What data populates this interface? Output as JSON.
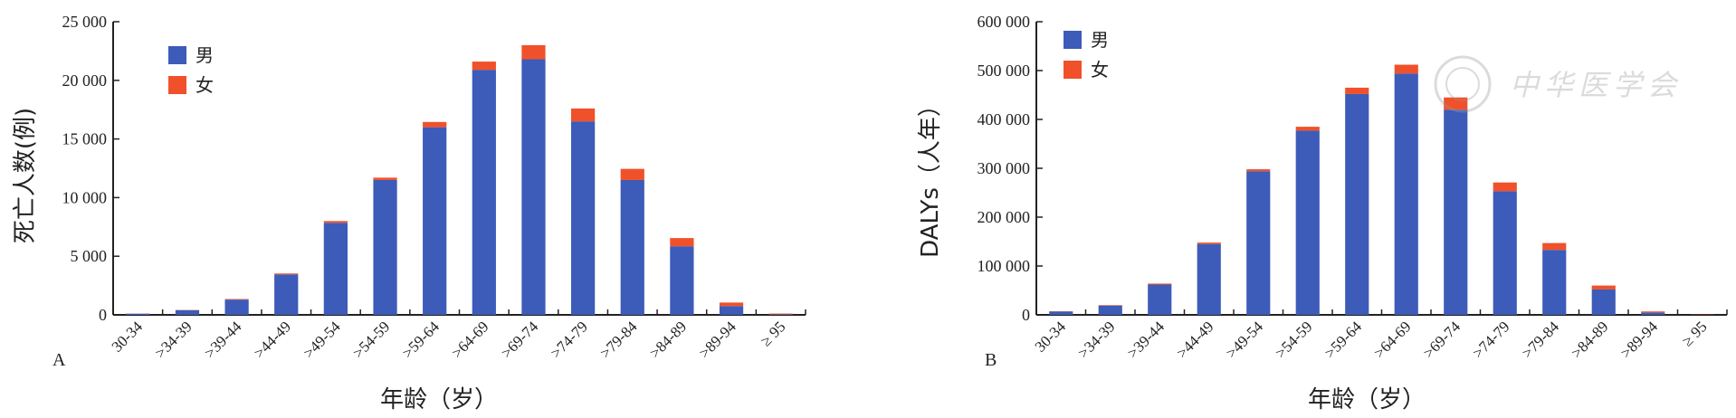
{
  "colors": {
    "male": "#3d5bb8",
    "female": "#f0512a",
    "axis": "#222222"
  },
  "chart_data": [
    {
      "type": "bar",
      "stacked": true,
      "panel_label": "A",
      "ylabel": "死亡人数(例)",
      "xlabel": "年龄（岁）",
      "ylim": [
        0,
        25000
      ],
      "yticks": [
        0,
        5000,
        10000,
        15000,
        20000,
        25000
      ],
      "ytick_labels": [
        "0",
        "5 000",
        "10 000",
        "15 000",
        "20 000",
        "25 000"
      ],
      "categories": [
        "30-34",
        ">34-39",
        ">39-44",
        ">44-49",
        ">49-54",
        ">54-59",
        ">59-64",
        ">64-69",
        ">69-74",
        ">74-79",
        ">79-84",
        ">84-89",
        ">89-94",
        "≥ 95"
      ],
      "legend_position": "top-left",
      "series": [
        {
          "name": "男",
          "values": [
            100,
            400,
            1300,
            3450,
            7850,
            11500,
            16000,
            20900,
            21800,
            16500,
            11500,
            5850,
            750,
            50
          ]
        },
        {
          "name": "女",
          "values": [
            10,
            20,
            50,
            80,
            150,
            200,
            450,
            700,
            1200,
            1100,
            950,
            700,
            300,
            60
          ]
        }
      ]
    },
    {
      "type": "bar",
      "stacked": true,
      "panel_label": "B",
      "ylabel": "DALYs（人年）",
      "xlabel": "年龄（岁）",
      "ylim": [
        0,
        600000
      ],
      "yticks": [
        0,
        100000,
        200000,
        300000,
        400000,
        500000,
        600000
      ],
      "ytick_labels": [
        "0",
        "100 000",
        "200 000",
        "300 000",
        "400 000",
        "500 000",
        "600 000"
      ],
      "categories": [
        "30-34",
        ">34-39",
        ">39-44",
        ">44-49",
        ">49-54",
        ">54-59",
        ">59-64",
        ">64-69",
        ">69-74",
        ">74-79",
        ">79-84",
        ">84-89",
        ">89-94",
        "≥ 95"
      ],
      "legend_position": "top-left",
      "series": [
        {
          "name": "男",
          "values": [
            7000,
            19000,
            62000,
            145000,
            294000,
            377000,
            452000,
            494000,
            420000,
            253000,
            133000,
            52000,
            5000,
            0
          ]
        },
        {
          "name": "女",
          "values": [
            500,
            1000,
            2000,
            3000,
            4000,
            8000,
            13000,
            18000,
            25000,
            18000,
            14000,
            8000,
            2000,
            500
          ]
        }
      ]
    }
  ],
  "watermark": {
    "text": "中华医学会"
  }
}
